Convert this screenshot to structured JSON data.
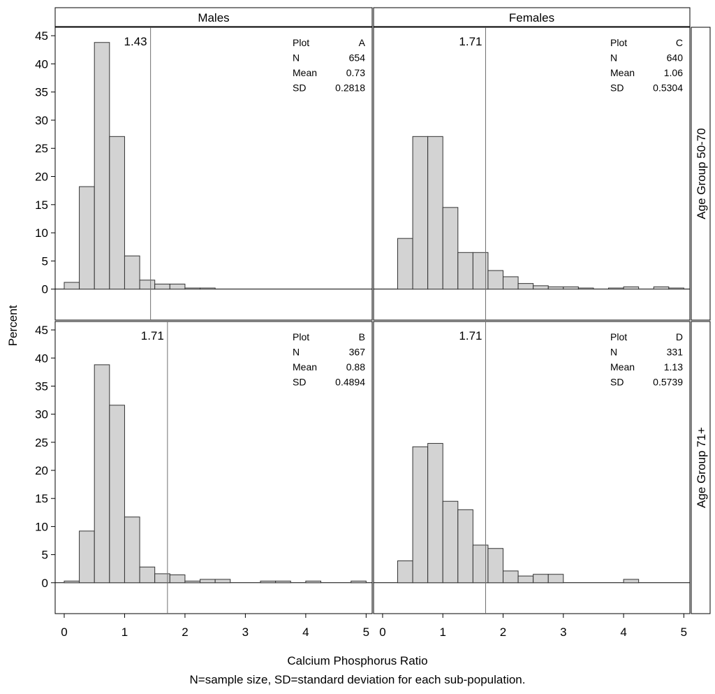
{
  "chart_data": {
    "type": "bar",
    "xlabel": "Calcium Phosphorus Ratio",
    "ylabel": "Percent",
    "footnote": "N=sample size, SD=standard deviation for each sub-population.",
    "columns": [
      "Males",
      "Females"
    ],
    "rows": [
      "Age Group 50-70",
      "Age Group 71+"
    ],
    "xlim": [
      -0.15,
      5.1
    ],
    "ylim": [
      -5.5,
      46.5
    ],
    "x_ticks": [
      "0",
      "1",
      "2",
      "3",
      "4",
      "5"
    ],
    "y_ticks": [
      "0",
      "5",
      "10",
      "15",
      "20",
      "25",
      "30",
      "35",
      "40",
      "45"
    ],
    "bin_width": 0.25,
    "stat_keys": [
      "Plot",
      "N",
      "Mean",
      "SD"
    ],
    "panels": [
      {
        "row": 0,
        "col": 0,
        "ref_line": 1.43,
        "ref_label": "1.43",
        "stats": {
          "Plot": "A",
          "N": "654",
          "Mean": "0.73",
          "SD": "0.2818"
        },
        "bins": [
          [
            0,
            1.2
          ],
          [
            0.25,
            18.2
          ],
          [
            0.5,
            43.8
          ],
          [
            0.75,
            27.1
          ],
          [
            1,
            5.9
          ],
          [
            1.25,
            1.6
          ],
          [
            1.5,
            0.9
          ],
          [
            1.75,
            0.9
          ],
          [
            2,
            0.2
          ],
          [
            2.25,
            0.2
          ]
        ]
      },
      {
        "row": 0,
        "col": 1,
        "ref_line": 1.71,
        "ref_label": "1.71",
        "stats": {
          "Plot": "C",
          "N": "640",
          "Mean": "1.06",
          "SD": "0.5304"
        },
        "bins": [
          [
            0.25,
            9.0
          ],
          [
            0.5,
            27.1
          ],
          [
            0.75,
            27.1
          ],
          [
            1,
            14.5
          ],
          [
            1.25,
            6.5
          ],
          [
            1.5,
            6.5
          ],
          [
            1.75,
            3.3
          ],
          [
            2,
            2.2
          ],
          [
            2.25,
            1.0
          ],
          [
            2.5,
            0.6
          ],
          [
            2.75,
            0.4
          ],
          [
            3,
            0.4
          ],
          [
            3.25,
            0.2
          ],
          [
            3.75,
            0.2
          ],
          [
            4,
            0.4
          ],
          [
            4.5,
            0.4
          ],
          [
            4.75,
            0.2
          ]
        ]
      },
      {
        "row": 1,
        "col": 0,
        "ref_line": 1.71,
        "ref_label": "1.71",
        "stats": {
          "Plot": "B",
          "N": "367",
          "Mean": "0.88",
          "SD": "0.4894"
        },
        "bins": [
          [
            0,
            0.3
          ],
          [
            0.25,
            9.2
          ],
          [
            0.5,
            38.8
          ],
          [
            0.75,
            31.6
          ],
          [
            1,
            11.7
          ],
          [
            1.25,
            2.8
          ],
          [
            1.5,
            1.6
          ],
          [
            1.75,
            1.4
          ],
          [
            2,
            0.3
          ],
          [
            2.25,
            0.6
          ],
          [
            2.5,
            0.6
          ],
          [
            3.25,
            0.3
          ],
          [
            3.5,
            0.3
          ],
          [
            4,
            0.3
          ],
          [
            4.75,
            0.3
          ]
        ]
      },
      {
        "row": 1,
        "col": 1,
        "ref_line": 1.71,
        "ref_label": "1.71",
        "stats": {
          "Plot": "D",
          "N": "331",
          "Mean": "1.13",
          "SD": "0.5739"
        },
        "bins": [
          [
            0.25,
            3.9
          ],
          [
            0.5,
            24.2
          ],
          [
            0.75,
            24.8
          ],
          [
            1,
            14.5
          ],
          [
            1.25,
            13.0
          ],
          [
            1.5,
            6.7
          ],
          [
            1.75,
            6.1
          ],
          [
            2,
            2.1
          ],
          [
            2.25,
            1.2
          ],
          [
            2.5,
            1.5
          ],
          [
            2.75,
            1.5
          ],
          [
            4,
            0.6
          ]
        ]
      }
    ]
  }
}
